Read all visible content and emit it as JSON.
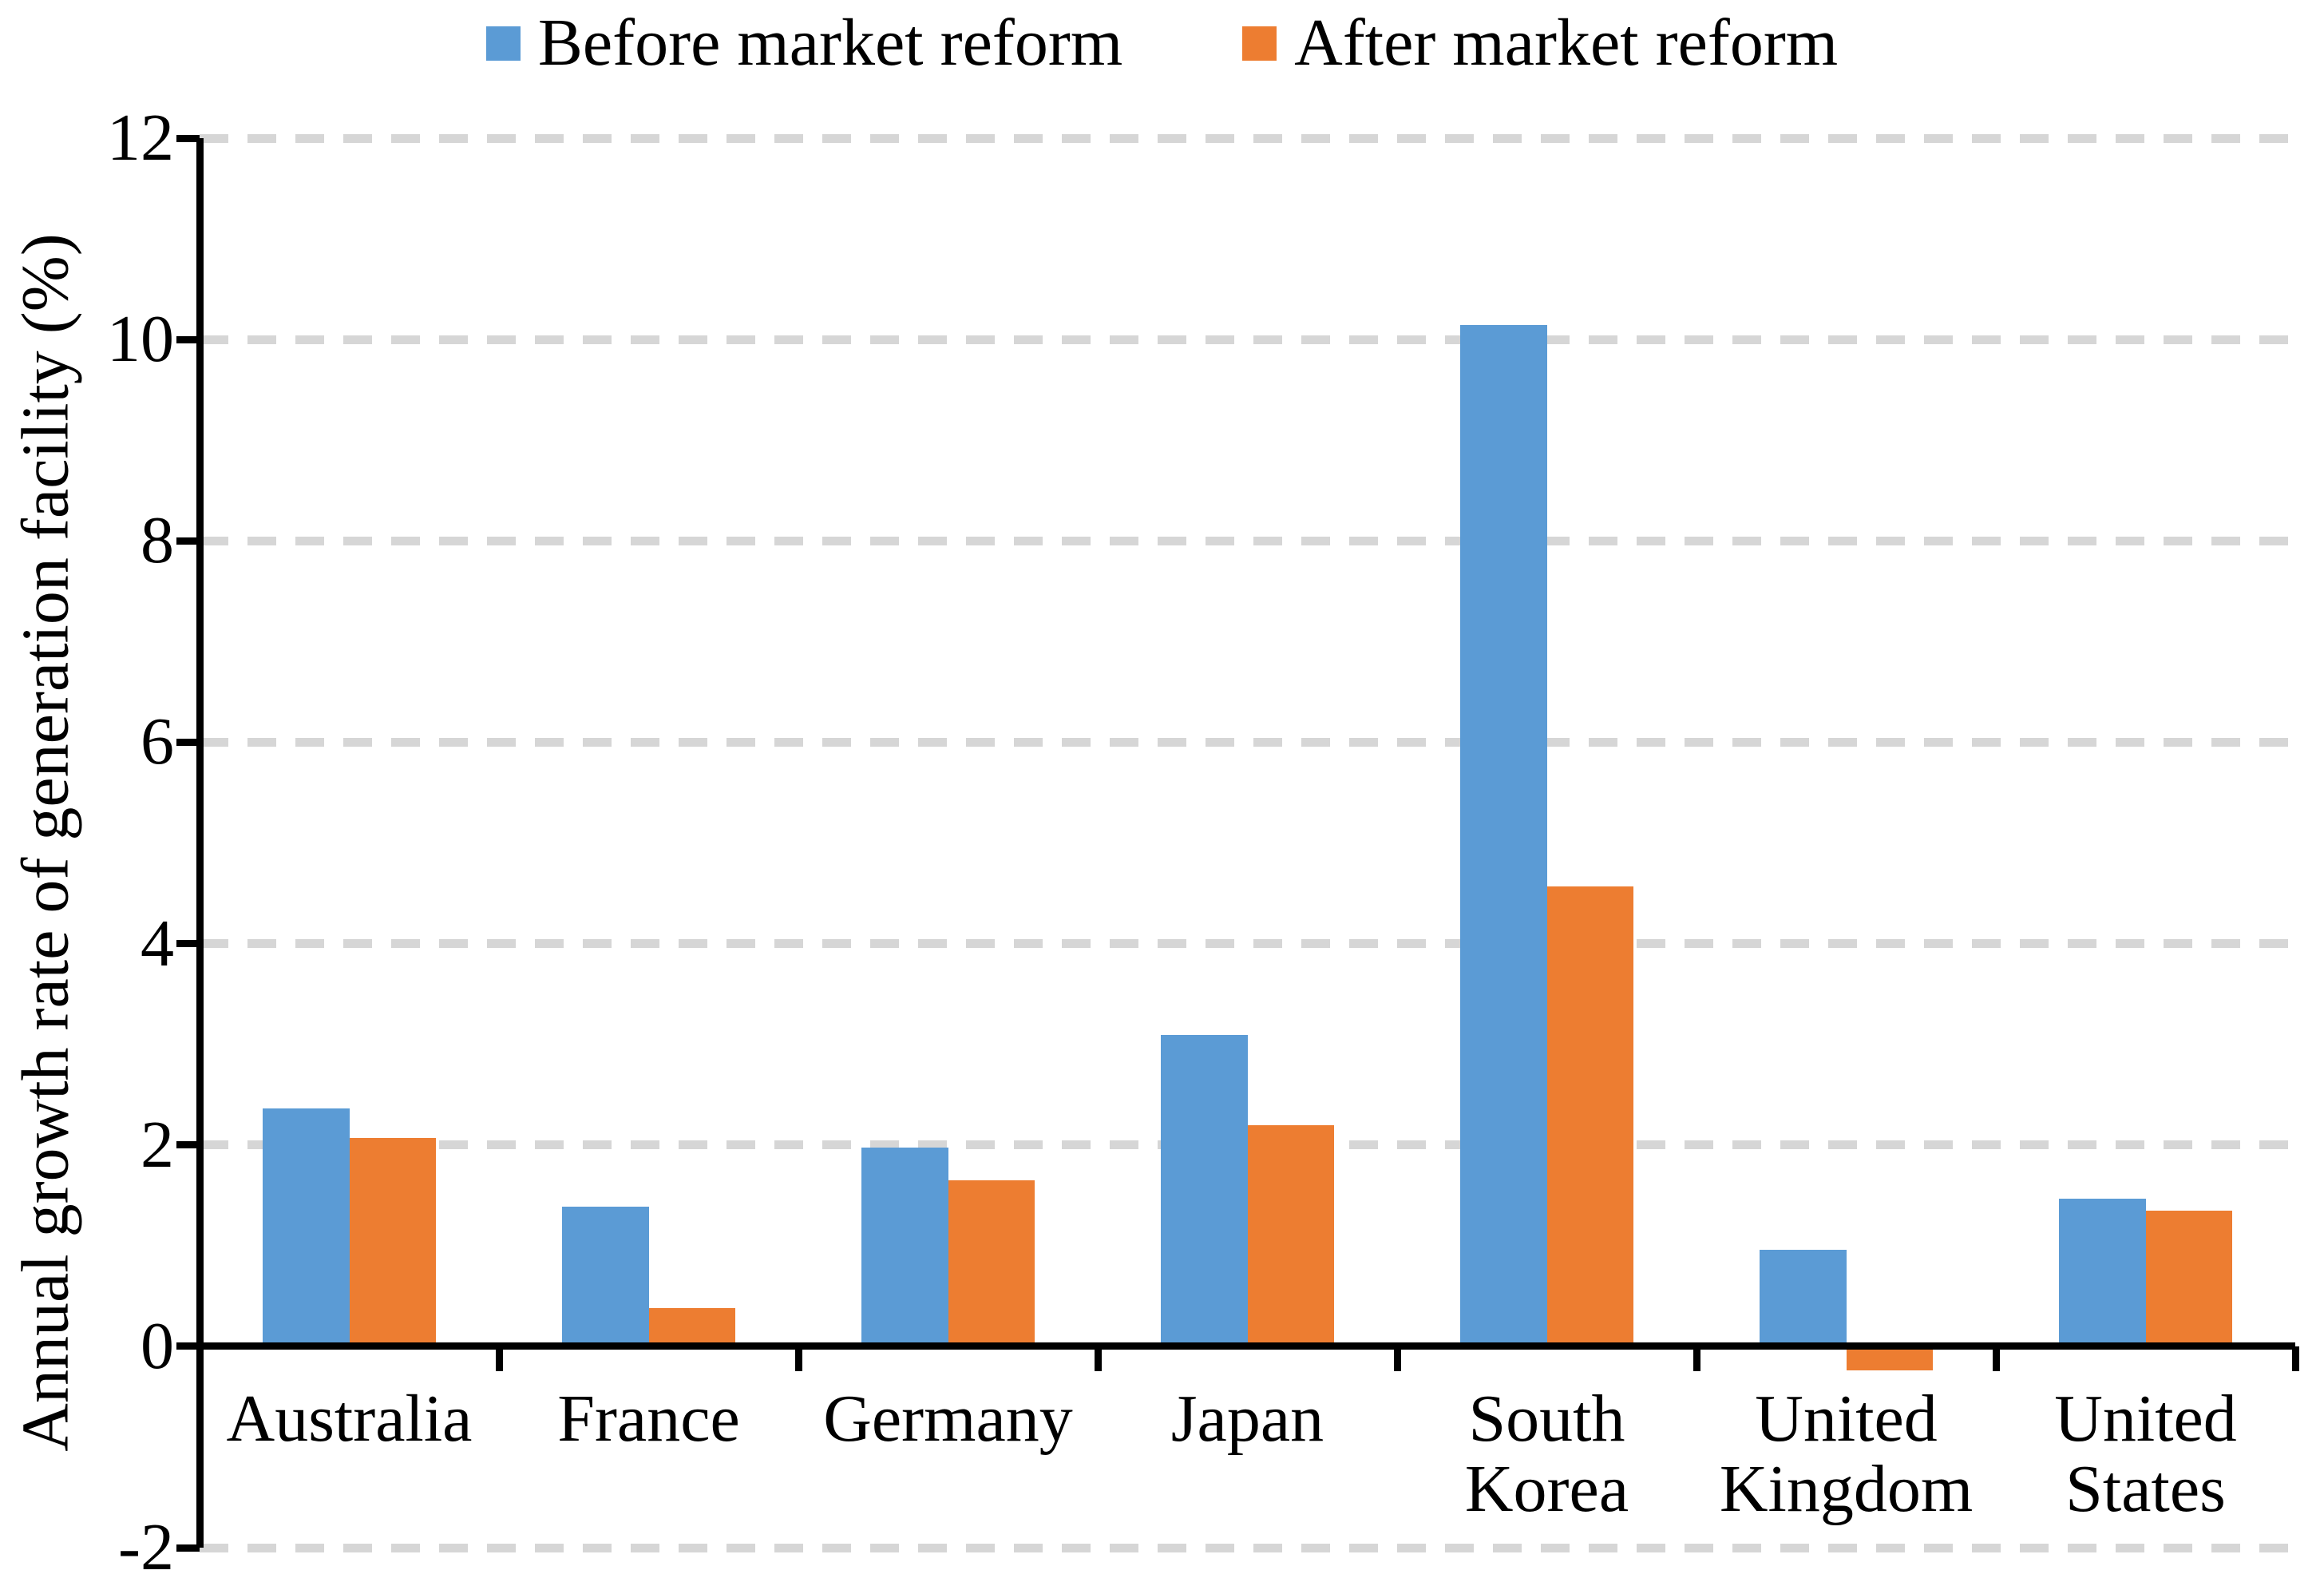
{
  "chart_data": {
    "type": "bar",
    "title": "",
    "ylabel": "Annual growth rate of generation facility (%)",
    "xlabel": "",
    "ylim": [
      -2,
      12
    ],
    "yticks": [
      -2,
      0,
      2,
      4,
      6,
      8,
      10,
      12
    ],
    "grid": "horizontal-dashed",
    "legend_position": "top-center",
    "categories": [
      "Australia",
      "France",
      "Germany",
      "Japan",
      "South Korea",
      "United Kingdom",
      "United States"
    ],
    "series": [
      {
        "name": "Before market reform",
        "color": "#5B9BD5",
        "values": [
          2.36,
          1.39,
          1.97,
          3.09,
          10.14,
          0.96,
          1.47
        ]
      },
      {
        "name": "After market reform",
        "color": "#ED7D31",
        "values": [
          2.07,
          0.38,
          1.65,
          2.2,
          4.57,
          -0.24,
          1.35
        ]
      }
    ],
    "colors": {
      "axis": "#000000",
      "gridline": "#D6D6D6",
      "text": "#000000",
      "background": "#FFFFFF"
    }
  }
}
